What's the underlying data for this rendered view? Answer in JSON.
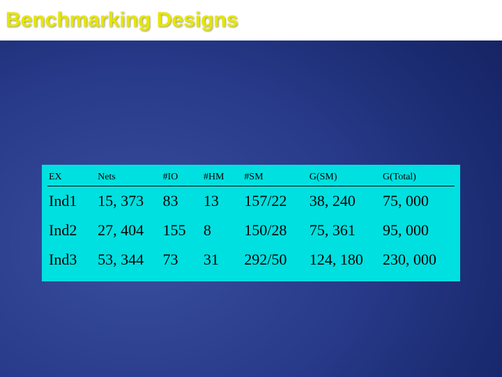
{
  "slide": {
    "title": "Benchmarking Designs",
    "title_color": "#e6e600",
    "title_bg": "#ffffff",
    "title_fontsize": 30,
    "background_gradient": {
      "type": "radial",
      "center": "200px 350px",
      "stops": [
        {
          "color": "#3a4f9f",
          "at": "0%"
        },
        {
          "color": "#283a8a",
          "at": "35%"
        },
        {
          "color": "#1a2a6f",
          "at": "60%"
        },
        {
          "color": "#0d1548",
          "at": "100%"
        }
      ]
    }
  },
  "table": {
    "type": "table",
    "background_color": "#00e0e0",
    "header_font": "Times New Roman",
    "header_fontsize": 14,
    "body_font": "Times New Roman",
    "body_fontsize": 22,
    "text_color": "#000000",
    "rule_color": "#000000",
    "columns": [
      {
        "key": "ex",
        "label": "EX",
        "width_pct": 12
      },
      {
        "key": "nets",
        "label": "Nets",
        "width_pct": 16
      },
      {
        "key": "io",
        "label": "#IO",
        "width_pct": 10
      },
      {
        "key": "hm",
        "label": "#HM",
        "width_pct": 10
      },
      {
        "key": "sm",
        "label": "#SM",
        "width_pct": 16
      },
      {
        "key": "gsm",
        "label": "G(SM)",
        "width_pct": 18
      },
      {
        "key": "gtot",
        "label": "G(Total)",
        "width_pct": 18
      }
    ],
    "rows": [
      {
        "ex": "Ind1",
        "nets": "15, 373",
        "io": "83",
        "hm": "13",
        "sm": "157/22",
        "gsm": "38, 240",
        "gtot": "75, 000"
      },
      {
        "ex": "Ind2",
        "nets": "27, 404",
        "io": "155",
        "hm": "8",
        "sm": "150/28",
        "gsm": "75, 361",
        "gtot": "95, 000"
      },
      {
        "ex": "Ind3",
        "nets": "53, 344",
        "io": "73",
        "hm": "31",
        "sm": "292/50",
        "gsm": "124, 180",
        "gtot": "230, 000"
      }
    ]
  }
}
